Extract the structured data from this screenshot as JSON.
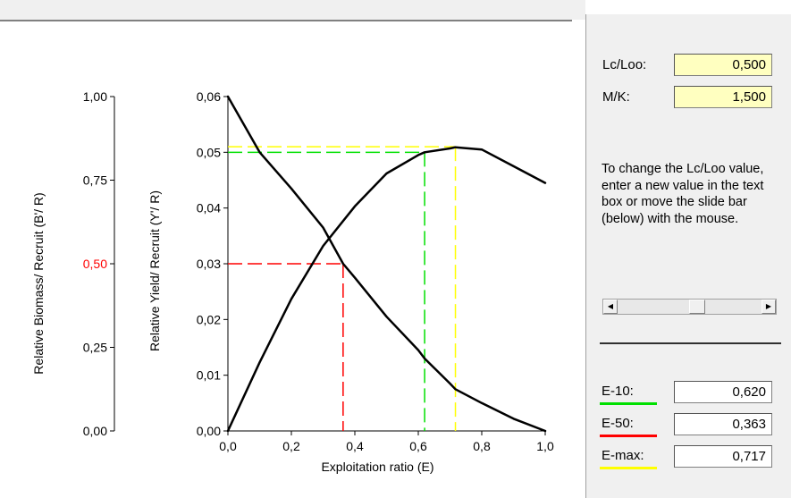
{
  "colors": {
    "e10": "#00e000",
    "e50": "#ff0000",
    "emax": "#ffff00",
    "curve": "#000000"
  },
  "params": {
    "lc_loo_label": "Lc/Loo:",
    "lc_loo_value": "0,500",
    "mk_label": "M/K:",
    "mk_value": "1,500"
  },
  "help_text": "To change the Lc/Loo value, enter a new value in the text box or move the slide bar (below) with the mouse.",
  "slider": {
    "left_icon": "scroll-left-arrow-icon",
    "right_icon": "scroll-right-arrow-icon"
  },
  "results": [
    {
      "label": "E-10:",
      "value": "0,620",
      "color": "#00e000"
    },
    {
      "label": "E-50:",
      "value": "0,363",
      "color": "#ff0000"
    },
    {
      "label": "E-max:",
      "value": "0,717",
      "color": "#ffff00"
    }
  ],
  "chart_data": {
    "type": "line",
    "xlabel": "Exploitation ratio (E)",
    "ylabel": "Relative Yield/ Recruit (Y'/ R)",
    "y2label": "Relative Biomass/ Recruit (B'/ R)",
    "xlim": [
      0,
      1
    ],
    "ylim": [
      0,
      0.06
    ],
    "y2lim": [
      0,
      1
    ],
    "x_ticks": [
      "0,0",
      "0,2",
      "0,4",
      "0,6",
      "0,8",
      "1,0"
    ],
    "y_ticks": [
      "0,00",
      "0,01",
      "0,02",
      "0,03",
      "0,04",
      "0,05",
      "0,06"
    ],
    "y2_ticks": [
      "0,00",
      "0,25",
      "0,50",
      "0,75",
      "1,00"
    ],
    "y2_highlight_tick": "0,50",
    "grid": false,
    "series": [
      {
        "x": [
          0,
          0.1,
          0.2,
          0.3,
          0.363,
          0.4,
          0.5,
          0.6,
          0.62,
          0.7,
          0.717,
          0.8,
          0.9,
          1.0
        ],
        "y": [
          0.06,
          0.05,
          0.0435,
          0.0365,
          0.03,
          0.0275,
          0.0205,
          0.0145,
          0.013,
          0.0085,
          0.0075,
          0.005,
          0.0022,
          0.0
        ]
      },
      {
        "x": [
          0,
          0.1,
          0.2,
          0.3,
          0.4,
          0.5,
          0.6,
          0.62,
          0.7,
          0.717,
          0.8,
          0.9,
          1.0
        ],
        "y": [
          0.0,
          0.0123,
          0.0237,
          0.0332,
          0.0403,
          0.0462,
          0.0495,
          0.05,
          0.0507,
          0.0509,
          0.0505,
          0.0475,
          0.0445
        ]
      }
    ],
    "reference_lines": [
      {
        "name": "E-10",
        "x": 0.62,
        "y": 0.05,
        "color": "#00e000"
      },
      {
        "name": "E-50",
        "x": 0.363,
        "y": 0.03,
        "color": "#ff0000"
      },
      {
        "name": "E-max",
        "x": 0.717,
        "y": 0.051,
        "color": "#ffff00"
      }
    ]
  }
}
